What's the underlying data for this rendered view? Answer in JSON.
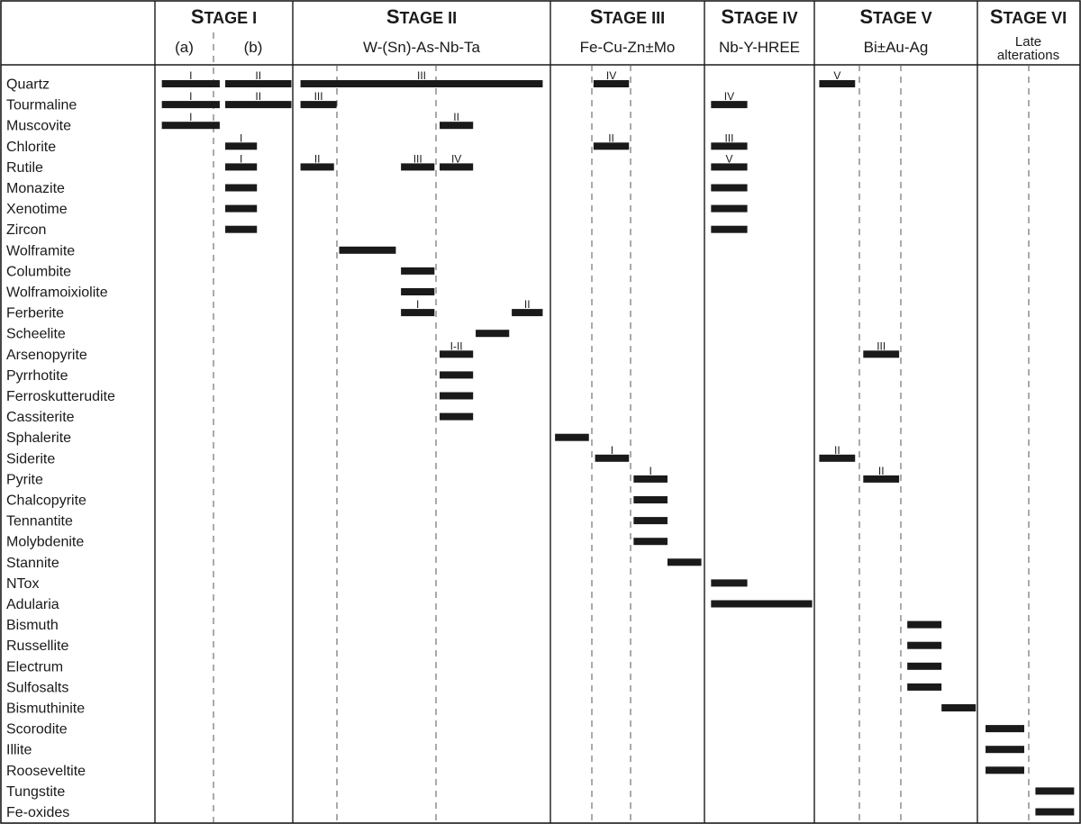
{
  "chart_data": {
    "type": "table",
    "stages": [
      {
        "id": "I",
        "big": "S",
        "small": "TAGE I",
        "subs": [
          {
            "text": "(a)"
          },
          {
            "text": "(b)"
          }
        ]
      },
      {
        "id": "II",
        "big": "S",
        "small": "TAGE II",
        "subs": [
          {
            "text": "W-(Sn)-As-Nb-Ta"
          }
        ]
      },
      {
        "id": "III",
        "big": "S",
        "small": "TAGE III",
        "subs": [
          {
            "text": "Fe-Cu-Zn±Mo"
          }
        ]
      },
      {
        "id": "IV",
        "big": "S",
        "small": "TAGE IV",
        "subs": [
          {
            "text": "Nb-Y-HREE"
          }
        ]
      },
      {
        "id": "V",
        "big": "S",
        "small": "TAGE V",
        "subs": [
          {
            "text": "Bi±Au-Ag"
          }
        ]
      },
      {
        "id": "VI",
        "big": "S",
        "small": "TAGE VI",
        "subs": [
          {
            "text": "Late"
          },
          {
            "text": "alterations"
          }
        ]
      }
    ],
    "minerals": [
      "Quartz",
      "Tourmaline",
      "Muscovite",
      "Chlorite",
      "Rutile",
      "Monazite",
      "Xenotime",
      "Zircon",
      "Wolframite",
      "Columbite",
      "Wolframoixiolite",
      "Ferberite",
      "Scheelite",
      "Arsenopyrite",
      "Pyrrhotite",
      "Ferroskutterudite",
      "Cassiterite",
      "Sphalerite",
      "Siderite",
      "Pyrite",
      "Chalcopyrite",
      "Tennantite",
      "Molybdenite",
      "Stannite",
      "NTox",
      "Adularia",
      "Bismuth",
      "Russellite",
      "Electrum",
      "Sulfosalts",
      "Bismuthinite",
      "Scorodite",
      "Illite",
      "Rooseveltite",
      "Tungstite",
      "Fe-oxides"
    ],
    "bars": [
      {
        "row": 0,
        "stage": "I",
        "start": 0.05,
        "end": 0.47,
        "gen": "I"
      },
      {
        "row": 0,
        "stage": "I",
        "start": 0.51,
        "end": 0.99,
        "gen": "II"
      },
      {
        "row": 0,
        "stage": "II",
        "start": 0.03,
        "end": 0.97,
        "gen": "III"
      },
      {
        "row": 0,
        "stage": "III",
        "start": 0.28,
        "end": 0.51,
        "gen": "IV"
      },
      {
        "row": 0,
        "stage": "V",
        "start": 0.03,
        "end": 0.25,
        "gen": "V"
      },
      {
        "row": 1,
        "stage": "I",
        "start": 0.05,
        "end": 0.47,
        "gen": "I"
      },
      {
        "row": 1,
        "stage": "I",
        "start": 0.51,
        "end": 0.99,
        "gen": "II"
      },
      {
        "row": 1,
        "stage": "II",
        "start": 0.03,
        "end": 0.17,
        "gen": "III"
      },
      {
        "row": 1,
        "stage": "IV",
        "start": 0.06,
        "end": 0.39,
        "gen": "IV"
      },
      {
        "row": 2,
        "stage": "I",
        "start": 0.05,
        "end": 0.47,
        "gen": "I"
      },
      {
        "row": 2,
        "stage": "II",
        "start": 0.57,
        "end": 0.7,
        "gen": "II"
      },
      {
        "row": 3,
        "stage": "I",
        "start": 0.51,
        "end": 0.74,
        "gen": "I"
      },
      {
        "row": 3,
        "stage": "III",
        "start": 0.28,
        "end": 0.51,
        "gen": "II"
      },
      {
        "row": 3,
        "stage": "IV",
        "start": 0.06,
        "end": 0.39,
        "gen": "III"
      },
      {
        "row": 4,
        "stage": "I",
        "start": 0.51,
        "end": 0.74,
        "gen": "I"
      },
      {
        "row": 4,
        "stage": "II",
        "start": 0.03,
        "end": 0.16,
        "gen": "II"
      },
      {
        "row": 4,
        "stage": "II",
        "start": 0.42,
        "end": 0.55,
        "gen": "III"
      },
      {
        "row": 4,
        "stage": "II",
        "start": 0.57,
        "end": 0.7,
        "gen": "IV"
      },
      {
        "row": 4,
        "stage": "IV",
        "start": 0.06,
        "end": 0.39,
        "gen": "V"
      },
      {
        "row": 5,
        "stage": "I",
        "start": 0.51,
        "end": 0.74,
        "gen": ""
      },
      {
        "row": 5,
        "stage": "IV",
        "start": 0.06,
        "end": 0.39,
        "gen": ""
      },
      {
        "row": 6,
        "stage": "I",
        "start": 0.51,
        "end": 0.74,
        "gen": ""
      },
      {
        "row": 6,
        "stage": "IV",
        "start": 0.06,
        "end": 0.39,
        "gen": ""
      },
      {
        "row": 7,
        "stage": "I",
        "start": 0.51,
        "end": 0.74,
        "gen": ""
      },
      {
        "row": 7,
        "stage": "IV",
        "start": 0.06,
        "end": 0.39,
        "gen": ""
      },
      {
        "row": 8,
        "stage": "II",
        "start": 0.18,
        "end": 0.4,
        "gen": ""
      },
      {
        "row": 9,
        "stage": "II",
        "start": 0.42,
        "end": 0.55,
        "gen": ""
      },
      {
        "row": 10,
        "stage": "II",
        "start": 0.42,
        "end": 0.55,
        "gen": ""
      },
      {
        "row": 11,
        "stage": "II",
        "start": 0.42,
        "end": 0.55,
        "gen": "I"
      },
      {
        "row": 11,
        "stage": "II",
        "start": 0.85,
        "end": 0.97,
        "gen": "II"
      },
      {
        "row": 12,
        "stage": "II",
        "start": 0.71,
        "end": 0.84,
        "gen": ""
      },
      {
        "row": 13,
        "stage": "II",
        "start": 0.57,
        "end": 0.7,
        "gen": "I-II"
      },
      {
        "row": 13,
        "stage": "V",
        "start": 0.3,
        "end": 0.52,
        "gen": "III"
      },
      {
        "row": 14,
        "stage": "II",
        "start": 0.57,
        "end": 0.7,
        "gen": ""
      },
      {
        "row": 15,
        "stage": "II",
        "start": 0.57,
        "end": 0.7,
        "gen": ""
      },
      {
        "row": 16,
        "stage": "II",
        "start": 0.57,
        "end": 0.7,
        "gen": ""
      },
      {
        "row": 17,
        "stage": "III",
        "start": 0.03,
        "end": 0.25,
        "gen": ""
      },
      {
        "row": 18,
        "stage": "III",
        "start": 0.29,
        "end": 0.51,
        "gen": "I"
      },
      {
        "row": 18,
        "stage": "V",
        "start": 0.03,
        "end": 0.25,
        "gen": "II"
      },
      {
        "row": 19,
        "stage": "III",
        "start": 0.54,
        "end": 0.76,
        "gen": "I"
      },
      {
        "row": 19,
        "stage": "V",
        "start": 0.3,
        "end": 0.52,
        "gen": "II"
      },
      {
        "row": 20,
        "stage": "III",
        "start": 0.54,
        "end": 0.76,
        "gen": ""
      },
      {
        "row": 21,
        "stage": "III",
        "start": 0.54,
        "end": 0.76,
        "gen": ""
      },
      {
        "row": 22,
        "stage": "III",
        "start": 0.54,
        "end": 0.76,
        "gen": ""
      },
      {
        "row": 23,
        "stage": "III",
        "start": 0.76,
        "end": 0.98,
        "gen": ""
      },
      {
        "row": 24,
        "stage": "IV",
        "start": 0.06,
        "end": 0.39,
        "gen": ""
      },
      {
        "row": 25,
        "stage": "IV",
        "start": 0.06,
        "end": 0.98,
        "gen": ""
      },
      {
        "row": 26,
        "stage": "V",
        "start": 0.57,
        "end": 0.78,
        "gen": ""
      },
      {
        "row": 27,
        "stage": "V",
        "start": 0.57,
        "end": 0.78,
        "gen": ""
      },
      {
        "row": 28,
        "stage": "V",
        "start": 0.57,
        "end": 0.78,
        "gen": ""
      },
      {
        "row": 29,
        "stage": "V",
        "start": 0.57,
        "end": 0.78,
        "gen": ""
      },
      {
        "row": 30,
        "stage": "V",
        "start": 0.78,
        "end": 0.99,
        "gen": ""
      },
      {
        "row": 31,
        "stage": "VI",
        "start": 0.08,
        "end": 0.46,
        "gen": ""
      },
      {
        "row": 32,
        "stage": "VI",
        "start": 0.08,
        "end": 0.46,
        "gen": ""
      },
      {
        "row": 33,
        "stage": "VI",
        "start": 0.08,
        "end": 0.46,
        "gen": ""
      },
      {
        "row": 34,
        "stage": "VI",
        "start": 0.57,
        "end": 0.95,
        "gen": ""
      },
      {
        "row": 35,
        "stage": "VI",
        "start": 0.57,
        "end": 0.95,
        "gen": ""
      }
    ]
  },
  "colors": {
    "ink": "#1a1a1a",
    "bar": "#1a1a1a",
    "grid": "#555555",
    "background": "#ffffff"
  }
}
